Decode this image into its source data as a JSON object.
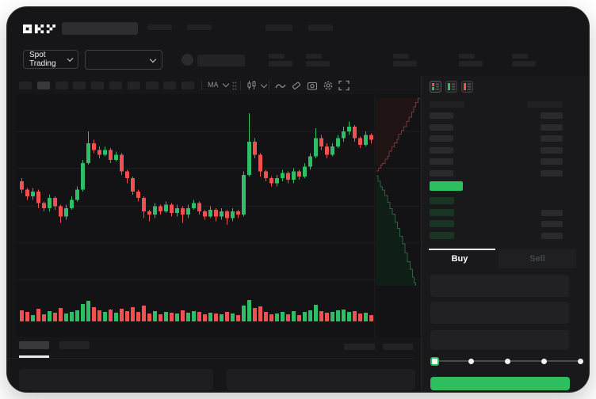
{
  "app": {
    "brand": "OKX"
  },
  "header": {
    "market_type_label": "Spot Trading"
  },
  "chart_toolbar": {
    "ma_label": "MA",
    "icons": [
      "line-style",
      "eraser",
      "camera",
      "settings-gear",
      "fullscreen"
    ]
  },
  "orderbook": {
    "view_modes": [
      "split-bids-asks",
      "bids-only",
      "asks-only"
    ],
    "active_view_mode": "split-bids-asks",
    "ask_row_count": 6,
    "bid_row_count": 4,
    "bid_rows_with_size_bar": [
      1,
      2,
      3
    ],
    "last_price_direction": "up"
  },
  "trade_panel": {
    "buy_tab_label": "Buy",
    "sell_tab_label": "Sell",
    "active_tab": "Buy",
    "input_count": 3,
    "amount_slider_stops_pct": [
      0,
      25,
      50,
      75,
      100
    ],
    "slider_value_pct": 0
  },
  "colors": {
    "up_green": "#2EBE66",
    "down_red": "#F0504F",
    "buy_button_green": "#2EBD5F",
    "last_price_bar_green": "#2EBD5F",
    "bid_row_tint": "#1A3424",
    "depth_ask_line": "#6E3A3A",
    "depth_ask_fill": "#201314",
    "depth_bid_line": "#2F5F45",
    "depth_bid_fill": "#0F1F16",
    "tab_indicator": "#F5F5F5"
  },
  "chart_data": {
    "type": "candlestick",
    "title": "",
    "axes_labeled": false,
    "legend": "none",
    "grid": "horizontal-only",
    "price_scale": {
      "min": 0,
      "max": 100,
      "note": "relative 0-100 scale; skeleton UI shows no numeric axis labels"
    },
    "gridline_prices": [
      88,
      66,
      43,
      21,
      -1
    ],
    "candles_ohlc": [
      [
        58,
        60,
        51,
        53
      ],
      [
        53,
        54,
        47,
        49
      ],
      [
        49,
        54,
        47,
        52
      ],
      [
        52,
        53,
        42,
        45
      ],
      [
        45,
        46,
        40,
        42
      ],
      [
        42,
        50,
        40,
        48
      ],
      [
        48,
        49,
        41,
        43
      ],
      [
        43,
        44,
        33,
        37
      ],
      [
        37,
        44,
        35,
        42
      ],
      [
        42,
        49,
        41,
        47
      ],
      [
        47,
        55,
        46,
        53
      ],
      [
        53,
        71,
        52,
        69
      ],
      [
        69,
        88,
        68,
        81
      ],
      [
        81,
        83,
        75,
        77
      ],
      [
        77,
        79,
        72,
        74
      ],
      [
        74,
        79,
        73,
        77
      ],
      [
        77,
        78,
        69,
        71
      ],
      [
        71,
        76,
        70,
        74
      ],
      [
        74,
        75,
        62,
        64
      ],
      [
        64,
        65,
        57,
        60
      ],
      [
        60,
        61,
        50,
        52
      ],
      [
        52,
        53,
        46,
        48
      ],
      [
        48,
        49,
        36,
        40
      ],
      [
        40,
        41,
        34,
        38
      ],
      [
        38,
        45,
        36,
        43
      ],
      [
        43,
        44,
        38,
        40
      ],
      [
        40,
        46,
        39,
        44
      ],
      [
        44,
        45,
        37,
        39
      ],
      [
        39,
        44,
        37,
        42
      ],
      [
        42,
        43,
        33,
        38
      ],
      [
        38,
        44,
        36,
        42
      ],
      [
        42,
        47,
        41,
        45
      ],
      [
        45,
        46,
        38,
        40
      ],
      [
        40,
        41,
        35,
        37
      ],
      [
        37,
        43,
        36,
        41
      ],
      [
        41,
        42,
        34,
        37
      ],
      [
        37,
        42,
        35,
        40
      ],
      [
        40,
        41,
        32,
        36
      ],
      [
        36,
        42,
        34,
        40
      ],
      [
        40,
        41,
        36,
        38
      ],
      [
        38,
        64,
        37,
        62
      ],
      [
        62,
        99,
        61,
        82
      ],
      [
        82,
        84,
        72,
        74
      ],
      [
        74,
        75,
        61,
        64
      ],
      [
        64,
        65,
        58,
        60
      ],
      [
        60,
        61,
        55,
        57
      ],
      [
        57,
        62,
        55,
        60
      ],
      [
        60,
        65,
        58,
        63
      ],
      [
        63,
        64,
        57,
        59
      ],
      [
        59,
        66,
        57,
        64
      ],
      [
        64,
        65,
        59,
        61
      ],
      [
        61,
        69,
        60,
        67
      ],
      [
        67,
        75,
        65,
        73
      ],
      [
        73,
        90,
        72,
        84
      ],
      [
        84,
        86,
        77,
        79
      ],
      [
        79,
        81,
        72,
        74
      ],
      [
        74,
        81,
        73,
        79
      ],
      [
        79,
        86,
        78,
        84
      ],
      [
        84,
        91,
        82,
        88
      ],
      [
        88,
        94,
        86,
        91
      ],
      [
        91,
        92,
        82,
        84
      ],
      [
        84,
        85,
        78,
        80
      ],
      [
        80,
        88,
        79,
        86
      ],
      [
        86,
        87,
        81,
        83
      ]
    ],
    "volume": [
      14,
      12,
      8,
      16,
      9,
      13,
      11,
      17,
      10,
      12,
      14,
      22,
      26,
      18,
      14,
      12,
      15,
      11,
      16,
      13,
      18,
      12,
      20,
      10,
      13,
      9,
      12,
      11,
      10,
      14,
      11,
      13,
      12,
      9,
      11,
      10,
      9,
      12,
      10,
      8,
      20,
      27,
      17,
      19,
      12,
      9,
      10,
      12,
      9,
      13,
      8,
      12,
      14,
      21,
      13,
      11,
      12,
      14,
      15,
      12,
      13,
      10,
      11,
      8
    ],
    "volume_colors_follow_candles": true,
    "depth_chart": {
      "orientation": "vertical-beside-price-axis",
      "asks_cumulative": [
        [
          0,
          0
        ],
        [
          0.05,
          0.04
        ],
        [
          0.1,
          0.08
        ],
        [
          0.14,
          0.1
        ],
        [
          0.2,
          0.16
        ],
        [
          0.26,
          0.2
        ],
        [
          0.3,
          0.27
        ],
        [
          0.36,
          0.33
        ],
        [
          0.42,
          0.38
        ],
        [
          0.48,
          0.43
        ],
        [
          0.52,
          0.5
        ],
        [
          0.58,
          0.55
        ],
        [
          0.64,
          0.6
        ],
        [
          0.7,
          0.67
        ],
        [
          0.76,
          0.73
        ],
        [
          0.82,
          0.8
        ],
        [
          0.87,
          0.87
        ],
        [
          0.92,
          0.93
        ],
        [
          0.97,
          0.98
        ],
        [
          1,
          1
        ]
      ],
      "bids_cumulative": [
        [
          0,
          0
        ],
        [
          0.04,
          0.05
        ],
        [
          0.09,
          0.1
        ],
        [
          0.14,
          0.13
        ],
        [
          0.2,
          0.18
        ],
        [
          0.26,
          0.24
        ],
        [
          0.32,
          0.3
        ],
        [
          0.38,
          0.35
        ],
        [
          0.44,
          0.42
        ],
        [
          0.5,
          0.48
        ],
        [
          0.56,
          0.55
        ],
        [
          0.62,
          0.62
        ],
        [
          0.68,
          0.7
        ],
        [
          0.74,
          0.78
        ],
        [
          0.8,
          0.85
        ],
        [
          0.86,
          0.92
        ],
        [
          0.9,
          0.97
        ],
        [
          0.93,
          1
        ]
      ]
    }
  }
}
